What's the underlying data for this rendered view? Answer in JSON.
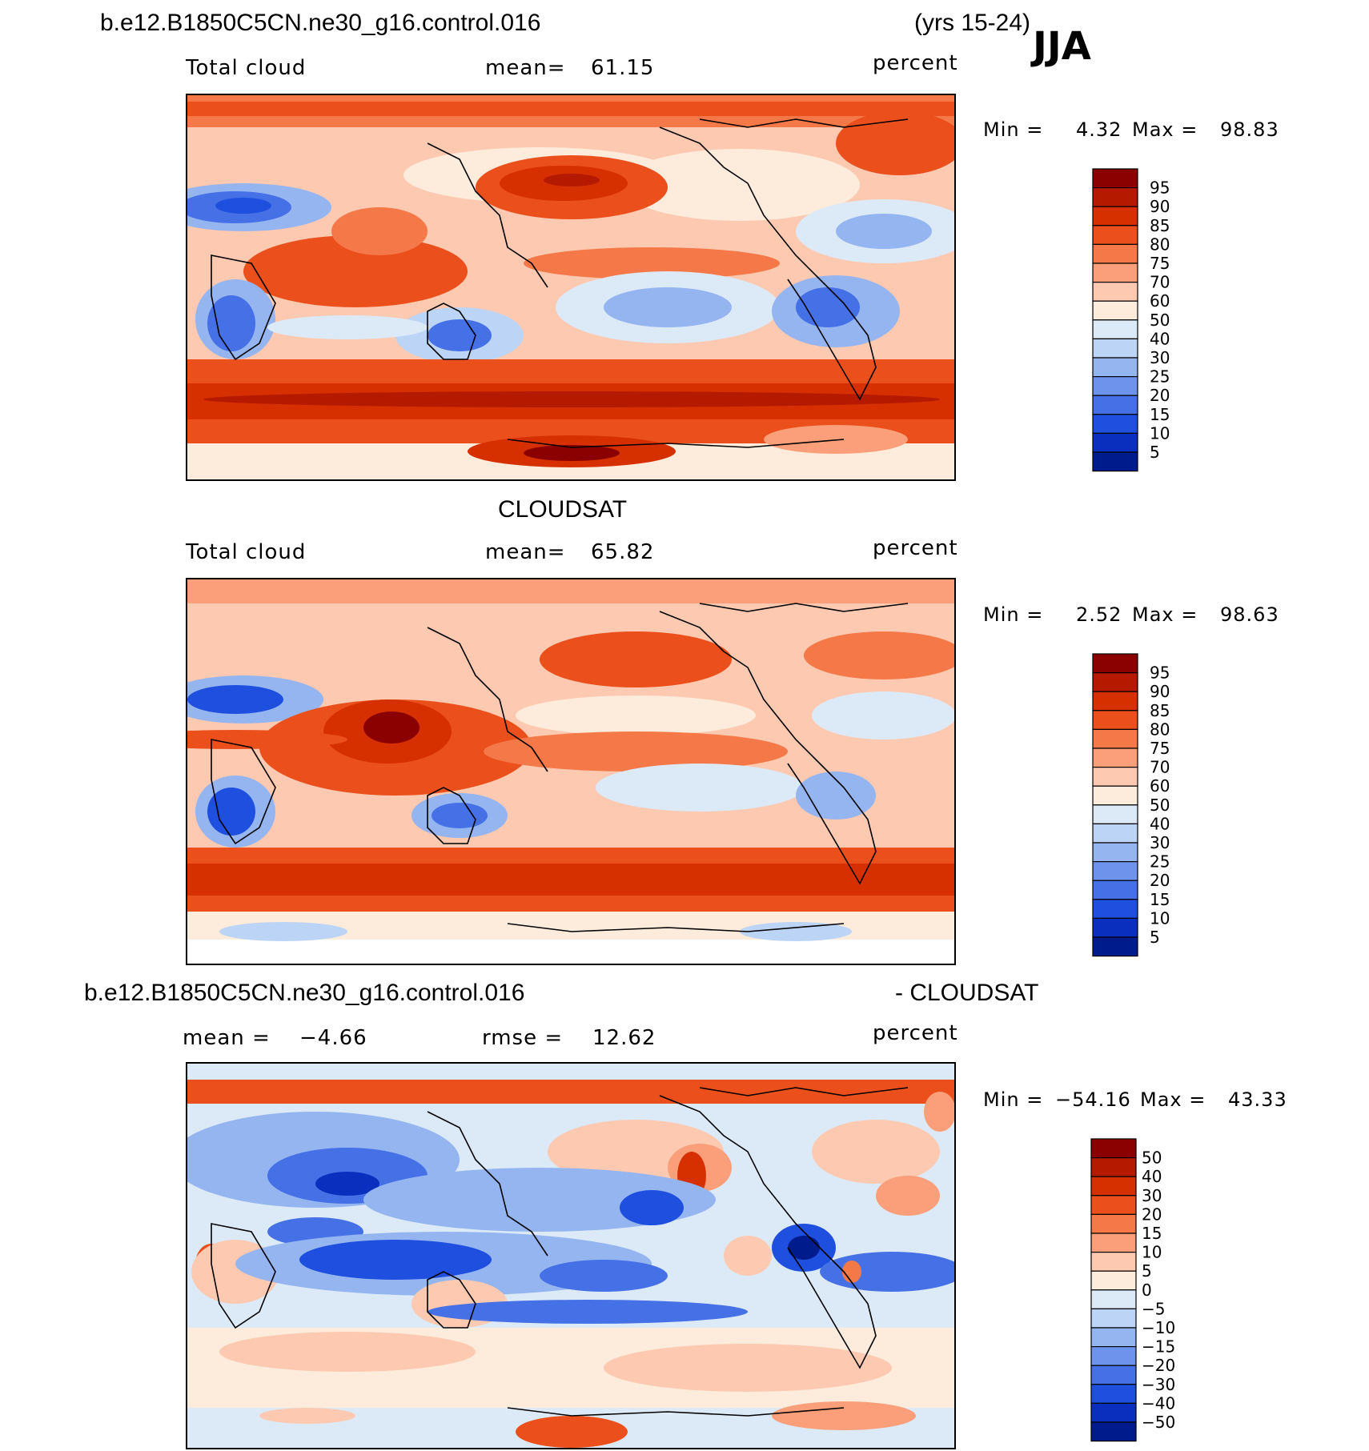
{
  "season": "JJA",
  "header": {
    "case": "b.e12.B1850C5CN.ne30_g16.control.016",
    "years": "(yrs 15-24)"
  },
  "panels": [
    {
      "id": "model",
      "title": "",
      "left_label": "Total cloud",
      "center_label": "mean=",
      "center_value": "61.15",
      "units": "percent",
      "min_label": "Min =",
      "min_value": "4.32",
      "max_label": "Max =",
      "max_value": "98.83"
    },
    {
      "id": "obs",
      "title": "CLOUDSAT",
      "left_label": "Total cloud",
      "center_label": "mean=",
      "center_value": "65.82",
      "units": "percent",
      "min_label": "Min =",
      "min_value": "2.52",
      "max_label": "Max =",
      "max_value": "98.63"
    },
    {
      "id": "diff",
      "title_left": "b.e12.B1850C5CN.ne30_g16.control.016",
      "title_right": "- CLOUDSAT",
      "left_label": "mean =",
      "left_value": "−4.66",
      "center_label": "rmse =",
      "center_value": "12.62",
      "units": "percent",
      "min_label": "Min =",
      "min_value": "−54.16",
      "max_label": "Max =",
      "max_value": "43.33"
    }
  ],
  "colorbars": {
    "absolute": {
      "labels": [
        "95",
        "90",
        "85",
        "80",
        "75",
        "70",
        "60",
        "50",
        "40",
        "30",
        "25",
        "20",
        "15",
        "10",
        "5"
      ],
      "colors": [
        "#8b0000",
        "#b51a00",
        "#d73000",
        "#ea4f1c",
        "#f57848",
        "#fb9e7a",
        "#fdc9b0",
        "#fdebdb",
        "#dceaf8",
        "#bcd4f5",
        "#95b5f0",
        "#6d93ec",
        "#4570e6",
        "#1f4fdf",
        "#0a2fbe",
        "#001c8c"
      ]
    },
    "difference": {
      "labels": [
        "50",
        "40",
        "30",
        "20",
        "15",
        "10",
        "5",
        "0",
        "−5",
        "−10",
        "−15",
        "−20",
        "−30",
        "−40",
        "−50"
      ],
      "colors": [
        "#8b0000",
        "#b51a00",
        "#d73000",
        "#ea4f1c",
        "#f57848",
        "#fb9e7a",
        "#fdc9b0",
        "#fdebdb",
        "#dceaf8",
        "#bcd4f5",
        "#95b5f0",
        "#6d93ec",
        "#4570e6",
        "#1f4fdf",
        "#0a2fbe",
        "#001c8c"
      ]
    }
  },
  "chart_data": [
    {
      "type": "heatmap",
      "title": "b.e12.B1850C5CN.ne30_g16.control.016 (yrs 15-24) JJA",
      "variable": "Total cloud",
      "units": "percent",
      "mean": 61.15,
      "min": 4.32,
      "max": 98.83,
      "contour_levels": [
        5,
        10,
        15,
        20,
        25,
        30,
        40,
        50,
        60,
        70,
        75,
        80,
        85,
        90,
        95
      ],
      "projection": "global cylindrical equidistant, centered on Pacific"
    },
    {
      "type": "heatmap",
      "title": "CLOUDSAT",
      "variable": "Total cloud",
      "units": "percent",
      "mean": 65.82,
      "min": 2.52,
      "max": 98.63,
      "contour_levels": [
        5,
        10,
        15,
        20,
        25,
        30,
        40,
        50,
        60,
        70,
        75,
        80,
        85,
        90,
        95
      ],
      "projection": "global cylindrical equidistant, centered on Pacific"
    },
    {
      "type": "heatmap",
      "title": "b.e12.B1850C5CN.ne30_g16.control.016 - CLOUDSAT",
      "units": "percent",
      "mean": -4.66,
      "rmse": 12.62,
      "min": -54.16,
      "max": 43.33,
      "contour_levels": [
        -50,
        -40,
        -30,
        -20,
        -15,
        -10,
        -5,
        0,
        5,
        10,
        15,
        20,
        30,
        40,
        50
      ],
      "projection": "global cylindrical equidistant, centered on Pacific"
    }
  ]
}
